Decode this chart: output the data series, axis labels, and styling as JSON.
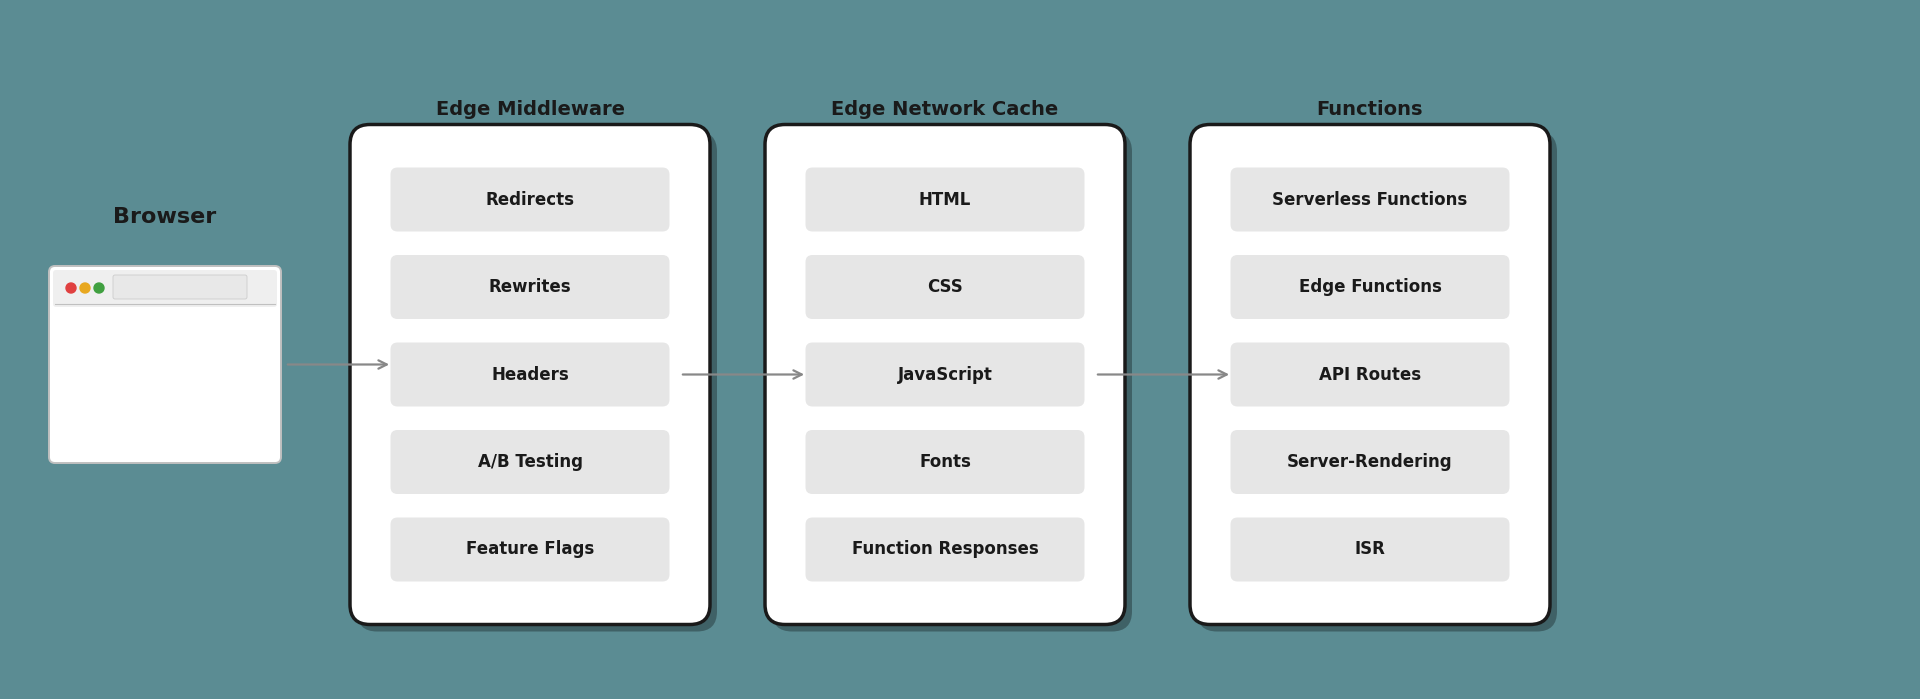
{
  "background_color": "#5b8c93",
  "title_fontsize": 14,
  "item_fontsize": 12,
  "browser_label": "Browser",
  "columns": [
    {
      "title": "Edge Middleware",
      "items": [
        "Redirects",
        "Rewrites",
        "Headers",
        "A/B Testing",
        "Feature Flags"
      ]
    },
    {
      "title": "Edge Network Cache",
      "items": [
        "HTML",
        "CSS",
        "JavaScript",
        "Fonts",
        "Function Responses"
      ]
    },
    {
      "title": "Functions",
      "items": [
        "Serverless Functions",
        "Edge Functions",
        "API Routes",
        "Server-Rendering",
        "ISR"
      ]
    }
  ],
  "panel_bg": "#ffffff",
  "panel_border": "#1a1a1a",
  "item_bg": "#e6e6e6",
  "text_color": "#1a1a1a",
  "arrow_color": "#888888",
  "browser_win_bg": "#ffffff",
  "browser_win_border": "#c0c0c0",
  "dot_red": "#e04040",
  "dot_yellow": "#e8a820",
  "dot_green": "#40a040",
  "url_bar_color": "#e8e8e8",
  "fig_width": 19.2,
  "fig_height": 6.99
}
